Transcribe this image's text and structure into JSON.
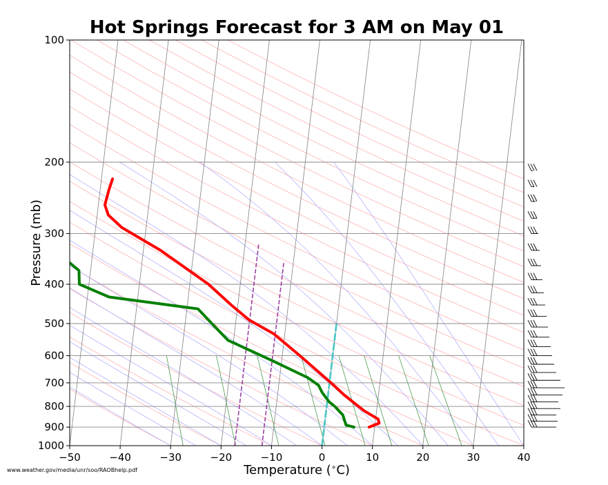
{
  "footer_url": "www.weather.gov/media/unr/soo/RAOBhelp.pdf",
  "colors": {
    "temperature": "#ff0000",
    "dewpoint": "#008000",
    "parcel_dashed": "#9b3fa0",
    "cyan_dashed": "#4fc7c7",
    "isotherm": "#808080",
    "dry_adiabat": "#ffb3b3",
    "moist_adiabat": "#b3b3ff",
    "mixing_ratio": "#2e8b2e"
  },
  "chart_data": {
    "type": "line",
    "subtype": "skew-T log-P sounding",
    "title": "Hot Springs Forecast for 3 AM on May 01",
    "xlabel": "Temperature ($^\\circ$C)",
    "ylabel": "Pressure (mb)",
    "xlim": [
      -50,
      40
    ],
    "ylim": [
      1000,
      100
    ],
    "y_scale": "log",
    "grid": true,
    "x_ticks": [
      -50,
      -40,
      -30,
      -20,
      -10,
      0,
      10,
      20,
      30,
      40
    ],
    "x_tick_labels": [
      "−50",
      "−40",
      "−30",
      "−20",
      "−10",
      "0",
      "10",
      "20",
      "30",
      "40"
    ],
    "y_ticks": [
      100,
      200,
      300,
      400,
      500,
      600,
      700,
      800,
      900,
      1000
    ],
    "y_tick_labels": [
      "100",
      "200",
      "300",
      "400",
      "500",
      "600",
      "700",
      "800",
      "900",
      "1000"
    ],
    "series": [
      {
        "kind": "temperature",
        "points": [
          {
            "p": 900,
            "t": 8.9
          },
          {
            "p": 880,
            "t": 10.8
          },
          {
            "p": 860,
            "t": 10.5
          },
          {
            "p": 820,
            "t": 7.5
          },
          {
            "p": 750,
            "t": 3.2
          },
          {
            "p": 700,
            "t": 0.3
          },
          {
            "p": 600,
            "t": -6.5
          },
          {
            "p": 530,
            "t": -12.2
          },
          {
            "p": 490,
            "t": -17.4
          },
          {
            "p": 450,
            "t": -21.3
          },
          {
            "p": 400,
            "t": -26.3
          },
          {
            "p": 330,
            "t": -36.6
          },
          {
            "p": 290,
            "t": -44.8
          },
          {
            "p": 270,
            "t": -47.8
          },
          {
            "p": 255,
            "t": -48.7
          },
          {
            "p": 235,
            "t": -48.3
          },
          {
            "p": 220,
            "t": -47.8
          }
        ]
      },
      {
        "kind": "dewpoint",
        "points": [
          {
            "p": 900,
            "t": 5.9
          },
          {
            "p": 890,
            "t": 4.3
          },
          {
            "p": 840,
            "t": 3.4
          },
          {
            "p": 800,
            "t": 1.6
          },
          {
            "p": 780,
            "t": 0.4
          },
          {
            "p": 740,
            "t": -1.2
          },
          {
            "p": 710,
            "t": -2.1
          },
          {
            "p": 680,
            "t": -4.4
          },
          {
            "p": 620,
            "t": -11.5
          },
          {
            "p": 550,
            "t": -21.1
          },
          {
            "p": 500,
            "t": -24.7
          },
          {
            "p": 460,
            "t": -27.8
          },
          {
            "p": 430,
            "t": -45.7
          },
          {
            "p": 400,
            "t": -51.9
          },
          {
            "p": 370,
            "t": -52.3
          },
          {
            "p": 340,
            "t": -56.2
          },
          {
            "p": 300,
            "t": -61.1
          },
          {
            "p": 280,
            "t": -62.4
          },
          {
            "p": 255,
            "t": -66.8
          },
          {
            "p": 235,
            "t": -72.2
          },
          {
            "p": 220,
            "t": -72.7
          }
        ]
      },
      {
        "kind": "parcel_dashed_1",
        "points": [
          {
            "p": 1000,
            "t": -17.3
          },
          {
            "p": 320,
            "t": -17.3
          }
        ]
      },
      {
        "kind": "parcel_dashed_2",
        "points": [
          {
            "p": 1000,
            "t": -11.9
          },
          {
            "p": 350,
            "t": -11.9
          }
        ]
      },
      {
        "kind": "cyan_dashed",
        "points": [
          {
            "p": 1000,
            "t": 0
          },
          {
            "p": 500,
            "t": 0
          }
        ]
      }
    ],
    "wind_barb_pressures": [
      900,
      870,
      840,
      810,
      780,
      750,
      720,
      690,
      660,
      630,
      600,
      570,
      540,
      510,
      480,
      450,
      420,
      390,
      360,
      330,
      300,
      275,
      250,
      230,
      210
    ]
  }
}
